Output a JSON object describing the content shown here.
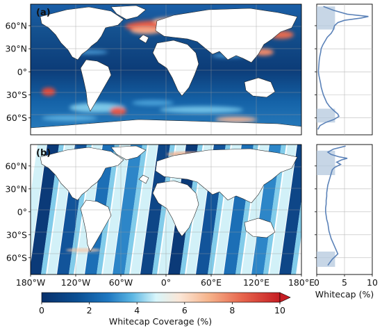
{
  "chart_data": [
    {
      "type": "heatmap",
      "panel": "(a)",
      "description_source": "global map of whitecap coverage (continuous model field)",
      "x_ticks": [
        "180°W",
        "120°W",
        "60°W",
        "0°",
        "60°E",
        "120°E",
        "180°E"
      ],
      "y_ticks": [
        "60°N",
        "30°N",
        "0°",
        "30°S",
        "60°S"
      ],
      "x_range": [
        -180,
        180
      ],
      "y_range": [
        -82,
        88
      ],
      "colors": {
        "low": "#08306b",
        "mid": "#e0fbff",
        "high": "#d7301f",
        "land": "#ffffff"
      }
    },
    {
      "type": "line",
      "panel": "(a)",
      "x_range": [
        0,
        10
      ],
      "y_range": [
        -82,
        88
      ],
      "profile": [
        [
          85,
          1.2
        ],
        [
          80,
          3.0
        ],
        [
          75,
          5.5
        ],
        [
          72,
          9.3
        ],
        [
          70,
          8.0
        ],
        [
          67,
          5.0
        ],
        [
          64,
          3.8
        ],
        [
          60,
          3.2
        ],
        [
          55,
          3.0
        ],
        [
          50,
          2.6
        ],
        [
          45,
          1.9
        ],
        [
          40,
          1.5
        ],
        [
          35,
          1.1
        ],
        [
          30,
          0.8
        ],
        [
          25,
          0.7
        ],
        [
          20,
          0.55
        ],
        [
          15,
          0.45
        ],
        [
          10,
          0.4
        ],
        [
          5,
          0.35
        ],
        [
          0,
          0.3
        ],
        [
          -5,
          0.4
        ],
        [
          -10,
          0.55
        ],
        [
          -15,
          0.7
        ],
        [
          -20,
          0.8
        ],
        [
          -25,
          1.0
        ],
        [
          -30,
          1.2
        ],
        [
          -35,
          1.5
        ],
        [
          -40,
          1.8
        ],
        [
          -45,
          2.3
        ],
        [
          -50,
          3.0
        ],
        [
          -55,
          3.8
        ],
        [
          -58,
          4.0
        ],
        [
          -62,
          3.1
        ],
        [
          -66,
          1.6
        ],
        [
          -70,
          0.6
        ],
        [
          -75,
          0.2
        ]
      ],
      "shaded_bands": [
        [
          55,
          85
        ],
        [
          -66,
          -48
        ]
      ]
    },
    {
      "type": "heatmap",
      "panel": "(b)",
      "x_ticks": [
        "180°W",
        "120°W",
        "60°W",
        "0°",
        "60°E",
        "120°E",
        "180°E"
      ],
      "y_ticks": [
        "60°N",
        "30°N",
        "0°",
        "30°S",
        "60°S"
      ],
      "x_range": [
        -180,
        180
      ],
      "y_range": [
        -82,
        88
      ],
      "swath_count": 10
    },
    {
      "type": "line",
      "panel": "(b)",
      "xlabel": "Whitecap (%)",
      "x_ticks": [
        "0",
        "5",
        "10"
      ],
      "x_range": [
        0,
        10
      ],
      "y_range": [
        -82,
        88
      ],
      "profile": [
        [
          86,
          5.2
        ],
        [
          82,
          3.0
        ],
        [
          78,
          2.0
        ],
        [
          75,
          2.6
        ],
        [
          72,
          4.0
        ],
        [
          70,
          5.5
        ],
        [
          68,
          4.5
        ],
        [
          65,
          3.6
        ],
        [
          62,
          4.3
        ],
        [
          58,
          3.2
        ],
        [
          55,
          2.8
        ],
        [
          50,
          2.6
        ],
        [
          45,
          2.4
        ],
        [
          40,
          2.2
        ],
        [
          35,
          2.0
        ],
        [
          30,
          1.9
        ],
        [
          25,
          1.8
        ],
        [
          20,
          1.8
        ],
        [
          15,
          1.7
        ],
        [
          10,
          1.7
        ],
        [
          5,
          1.6
        ],
        [
          0,
          1.6
        ],
        [
          -5,
          1.7
        ],
        [
          -10,
          1.8
        ],
        [
          -15,
          2.0
        ],
        [
          -20,
          2.1
        ],
        [
          -25,
          2.2
        ],
        [
          -30,
          2.4
        ],
        [
          -35,
          2.6
        ],
        [
          -40,
          2.9
        ],
        [
          -45,
          3.2
        ],
        [
          -50,
          3.5
        ],
        [
          -55,
          3.8
        ],
        [
          -58,
          3.4
        ],
        [
          -62,
          2.8
        ],
        [
          -66,
          2.4
        ],
        [
          -70,
          2.0
        ]
      ],
      "shaded_bands": [
        [
          48,
          80
        ],
        [
          -72,
          -52
        ]
      ]
    }
  ],
  "colorbar": {
    "label": "Whitecap Coverage (%)",
    "ticks": [
      "0",
      "2",
      "4",
      "6",
      "8",
      "10"
    ],
    "range": [
      0,
      10
    ],
    "extend": "max"
  }
}
